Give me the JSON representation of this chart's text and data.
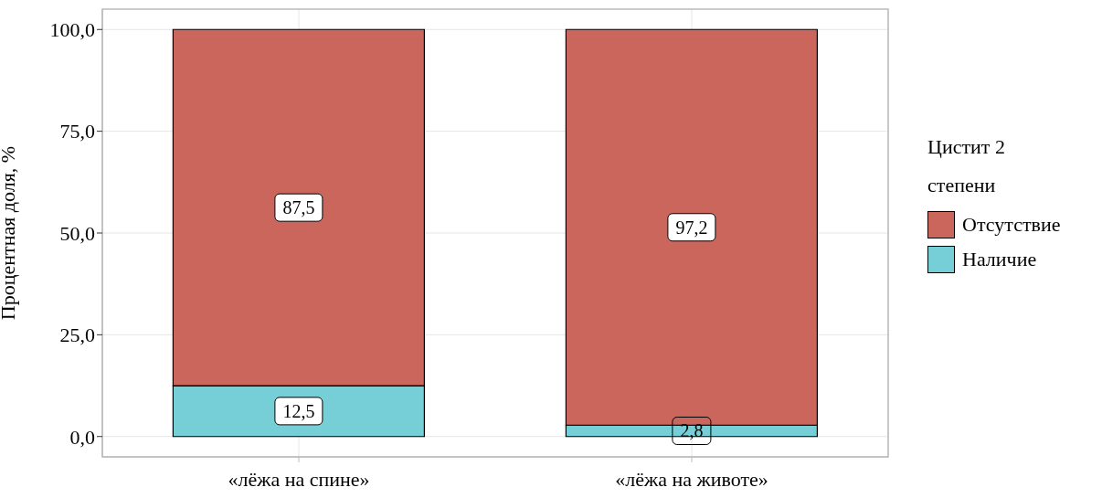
{
  "chart_data": {
    "type": "bar",
    "stacked": true,
    "categories": [
      "«лёжа на спине»",
      "«лёжа на животе»"
    ],
    "series": [
      {
        "name": "Наличие",
        "color": "#76cfd6",
        "values": [
          12.5,
          2.8
        ],
        "value_labels": [
          "12,5",
          "2,8"
        ]
      },
      {
        "name": "Отсутствие",
        "color": "#cb665c",
        "values": [
          87.5,
          97.2
        ],
        "value_labels": [
          "87,5",
          "97,2"
        ]
      }
    ],
    "ylabel": "Процентная доля, %",
    "legend_title": "Цистит 2 степени",
    "legend": "right",
    "grid": true,
    "ylim": [
      -5,
      105
    ],
    "yticks": [
      {
        "value": 0,
        "label": "0,0"
      },
      {
        "value": 25,
        "label": "25,0"
      },
      {
        "value": 50,
        "label": "50,0"
      },
      {
        "value": 75,
        "label": "75,0"
      },
      {
        "value": 100,
        "label": "100,0"
      }
    ]
  }
}
